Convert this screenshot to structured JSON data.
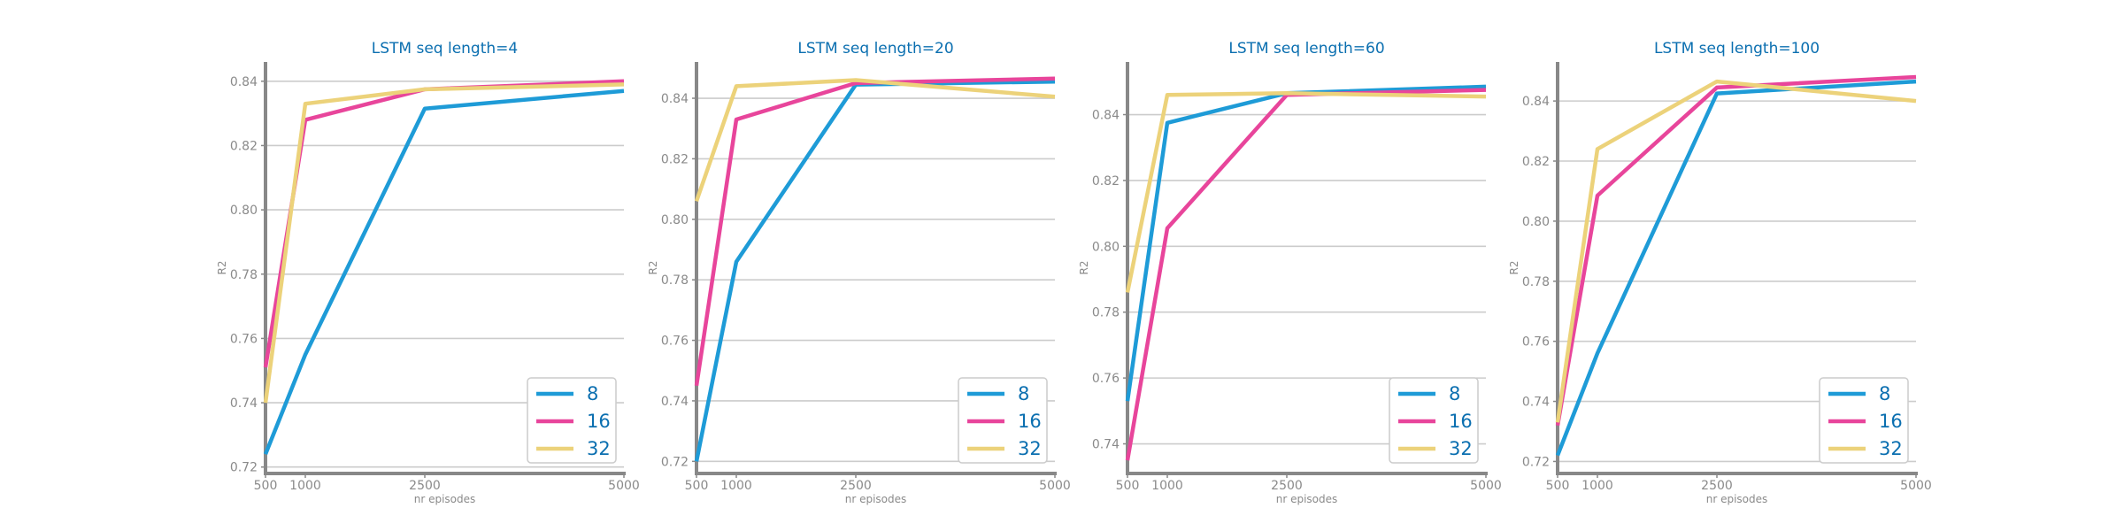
{
  "colors": {
    "series_8": "#1e9bd7",
    "series_16": "#e8459b",
    "series_32": "#ecd27a",
    "title": "#0b6fb0",
    "axis": "#888888",
    "grid": "#cccccc",
    "tick_text": "#8a8a8a"
  },
  "chart_data": [
    {
      "type": "line",
      "title": "LSTM seq length=4",
      "xlabel": "nr episodes",
      "ylabel": "R2",
      "x": [
        500,
        1000,
        2500,
        5000
      ],
      "xticks": [
        "500",
        "1000",
        "2500",
        "5000"
      ],
      "yticks": [
        "0.72",
        "0.74",
        "0.76",
        "0.78",
        "0.80",
        "0.82",
        "0.84"
      ],
      "ylim": [
        0.718,
        0.846
      ],
      "grid": "horizontal",
      "legend_position": "bottom-right",
      "series": [
        {
          "name": "8",
          "values": [
            0.724,
            0.755,
            0.8315,
            0.837
          ]
        },
        {
          "name": "16",
          "values": [
            0.751,
            0.828,
            0.8375,
            0.84
          ]
        },
        {
          "name": "32",
          "values": [
            0.74,
            0.833,
            0.8375,
            0.839
          ]
        }
      ]
    },
    {
      "type": "line",
      "title": "LSTM seq length=20",
      "xlabel": "nr episodes",
      "ylabel": "R2",
      "x": [
        500,
        1000,
        2500,
        5000
      ],
      "xticks": [
        "500",
        "1000",
        "2500",
        "5000"
      ],
      "yticks": [
        "0.72",
        "0.74",
        "0.76",
        "0.78",
        "0.80",
        "0.82",
        "0.84"
      ],
      "ylim": [
        0.716,
        0.852
      ],
      "grid": "horizontal",
      "legend_position": "bottom-right",
      "series": [
        {
          "name": "8",
          "values": [
            0.72,
            0.786,
            0.8445,
            0.8455
          ]
        },
        {
          "name": "16",
          "values": [
            0.745,
            0.833,
            0.845,
            0.8465
          ]
        },
        {
          "name": "32",
          "values": [
            0.806,
            0.844,
            0.846,
            0.8405
          ]
        }
      ]
    },
    {
      "type": "line",
      "title": "LSTM seq length=60",
      "xlabel": "nr episodes",
      "ylabel": "R2",
      "x": [
        500,
        1000,
        2500,
        5000
      ],
      "xticks": [
        "500",
        "1000",
        "2500",
        "5000"
      ],
      "yticks": [
        "0.74",
        "0.76",
        "0.78",
        "0.80",
        "0.82",
        "0.84"
      ],
      "ylim": [
        0.731,
        0.856
      ],
      "grid": "horizontal",
      "legend_position": "bottom-right",
      "series": [
        {
          "name": "8",
          "values": [
            0.753,
            0.8375,
            0.8465,
            0.8485
          ]
        },
        {
          "name": "16",
          "values": [
            0.735,
            0.8055,
            0.846,
            0.8475
          ]
        },
        {
          "name": "32",
          "values": [
            0.786,
            0.846,
            0.8465,
            0.8455
          ]
        }
      ]
    },
    {
      "type": "line",
      "title": "LSTM seq length=100",
      "xlabel": "nr episodes",
      "ylabel": "R2",
      "x": [
        500,
        1000,
        2500,
        5000
      ],
      "xticks": [
        "500",
        "1000",
        "2500",
        "5000"
      ],
      "yticks": [
        "0.72",
        "0.74",
        "0.76",
        "0.78",
        "0.80",
        "0.82",
        "0.84"
      ],
      "ylim": [
        0.716,
        0.853
      ],
      "grid": "horizontal",
      "legend_position": "bottom-right",
      "series": [
        {
          "name": "8",
          "values": [
            0.722,
            0.756,
            0.8425,
            0.8465
          ]
        },
        {
          "name": "16",
          "values": [
            0.732,
            0.8085,
            0.8445,
            0.848
          ]
        },
        {
          "name": "32",
          "values": [
            0.733,
            0.824,
            0.8465,
            0.84
          ]
        }
      ]
    }
  ]
}
